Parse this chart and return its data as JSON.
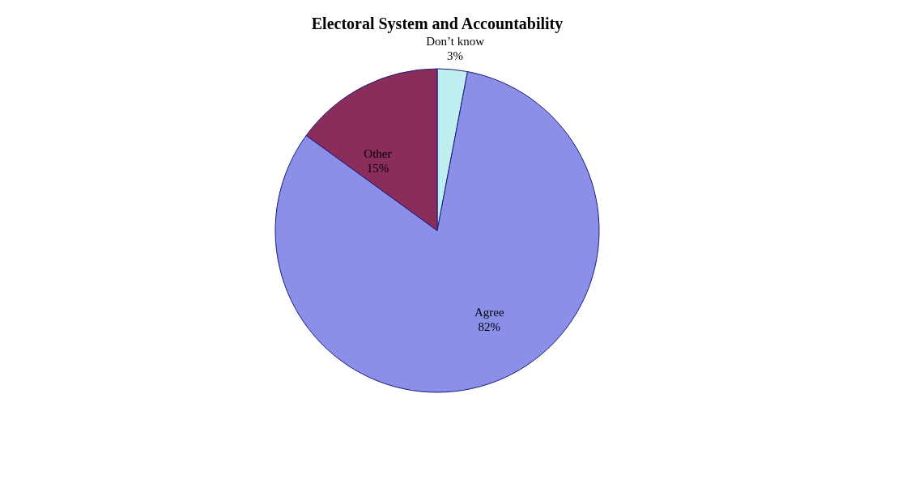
{
  "chart_data": {
    "type": "pie",
    "title": "Electoral System and Accountability",
    "categories": [
      "Don’t know",
      "Agree",
      "Other"
    ],
    "values": [
      3,
      82,
      15
    ],
    "value_labels": [
      "3%",
      "82%",
      "15%"
    ],
    "colors": [
      "#bfeef0",
      "#8b8fe8",
      "#8b2d5a"
    ],
    "legend": false
  }
}
